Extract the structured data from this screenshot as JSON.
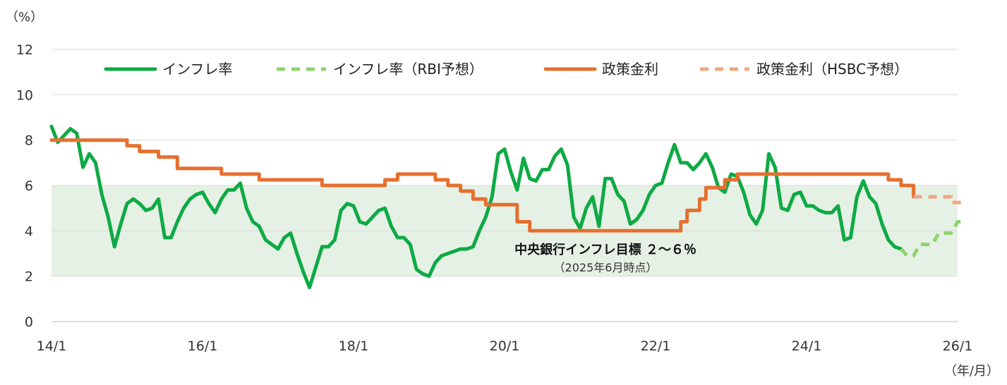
{
  "chart_data": {
    "type": "line",
    "y_unit_label": "（%）",
    "x_unit_label": "（年/月）",
    "ylim": [
      0,
      12
    ],
    "y_ticks": [
      0,
      2,
      4,
      6,
      8,
      10,
      12
    ],
    "x_range": [
      "2014-01",
      "2026-01"
    ],
    "x_ticks": [
      {
        "label": "14/1",
        "date": "2014-01"
      },
      {
        "label": "16/1",
        "date": "2016-01"
      },
      {
        "label": "18/1",
        "date": "2018-01"
      },
      {
        "label": "20/1",
        "date": "2020-01"
      },
      {
        "label": "22/1",
        "date": "2022-01"
      },
      {
        "label": "24/1",
        "date": "2024-01"
      },
      {
        "label": "26/1",
        "date": "2026-01"
      }
    ],
    "grid": true,
    "legend_position": "top",
    "band": {
      "from": 2,
      "to": 6,
      "label": "中央銀行インフレ目標 ２～６％",
      "sublabel": "（2025年6月時点）",
      "color": "#e6f1e5"
    },
    "series": [
      {
        "name": "インフレ率",
        "style": "solid",
        "color": "#0eaa45",
        "points": [
          [
            "2014-01",
            8.6
          ],
          [
            "2014-02",
            7.9
          ],
          [
            "2014-03",
            8.2
          ],
          [
            "2014-04",
            8.5
          ],
          [
            "2014-05",
            8.3
          ],
          [
            "2014-06",
            6.8
          ],
          [
            "2014-07",
            7.4
          ],
          [
            "2014-08",
            7.0
          ],
          [
            "2014-09",
            5.6
          ],
          [
            "2014-10",
            4.6
          ],
          [
            "2014-11",
            3.3
          ],
          [
            "2014-12",
            4.3
          ],
          [
            "2015-01",
            5.2
          ],
          [
            "2015-02",
            5.4
          ],
          [
            "2015-03",
            5.2
          ],
          [
            "2015-04",
            4.9
          ],
          [
            "2015-05",
            5.0
          ],
          [
            "2015-06",
            5.4
          ],
          [
            "2015-07",
            3.7
          ],
          [
            "2015-08",
            3.7
          ],
          [
            "2015-09",
            4.4
          ],
          [
            "2015-10",
            5.0
          ],
          [
            "2015-11",
            5.4
          ],
          [
            "2015-12",
            5.6
          ],
          [
            "2016-01",
            5.7
          ],
          [
            "2016-02",
            5.2
          ],
          [
            "2016-03",
            4.8
          ],
          [
            "2016-04",
            5.4
          ],
          [
            "2016-05",
            5.8
          ],
          [
            "2016-06",
            5.8
          ],
          [
            "2016-07",
            6.1
          ],
          [
            "2016-08",
            5.0
          ],
          [
            "2016-09",
            4.4
          ],
          [
            "2016-10",
            4.2
          ],
          [
            "2016-11",
            3.6
          ],
          [
            "2016-12",
            3.4
          ],
          [
            "2017-01",
            3.2
          ],
          [
            "2017-02",
            3.7
          ],
          [
            "2017-03",
            3.9
          ],
          [
            "2017-04",
            3.0
          ],
          [
            "2017-05",
            2.2
          ],
          [
            "2017-06",
            1.5
          ],
          [
            "2017-07",
            2.4
          ],
          [
            "2017-08",
            3.3
          ],
          [
            "2017-09",
            3.3
          ],
          [
            "2017-10",
            3.6
          ],
          [
            "2017-11",
            4.9
          ],
          [
            "2017-12",
            5.2
          ],
          [
            "2018-01",
            5.1
          ],
          [
            "2018-02",
            4.4
          ],
          [
            "2018-03",
            4.3
          ],
          [
            "2018-04",
            4.6
          ],
          [
            "2018-05",
            4.9
          ],
          [
            "2018-06",
            5.0
          ],
          [
            "2018-07",
            4.2
          ],
          [
            "2018-08",
            3.7
          ],
          [
            "2018-09",
            3.7
          ],
          [
            "2018-10",
            3.4
          ],
          [
            "2018-11",
            2.3
          ],
          [
            "2018-12",
            2.1
          ],
          [
            "2019-01",
            2.0
          ],
          [
            "2019-02",
            2.6
          ],
          [
            "2019-03",
            2.9
          ],
          [
            "2019-04",
            3.0
          ],
          [
            "2019-05",
            3.1
          ],
          [
            "2019-06",
            3.2
          ],
          [
            "2019-07",
            3.2
          ],
          [
            "2019-08",
            3.3
          ],
          [
            "2019-09",
            4.0
          ],
          [
            "2019-10",
            4.6
          ],
          [
            "2019-11",
            5.5
          ],
          [
            "2019-12",
            7.4
          ],
          [
            "2020-01",
            7.6
          ],
          [
            "2020-02",
            6.6
          ],
          [
            "2020-03",
            5.8
          ],
          [
            "2020-04",
            7.2
          ],
          [
            "2020-05",
            6.3
          ],
          [
            "2020-06",
            6.2
          ],
          [
            "2020-07",
            6.7
          ],
          [
            "2020-08",
            6.7
          ],
          [
            "2020-09",
            7.3
          ],
          [
            "2020-10",
            7.6
          ],
          [
            "2020-11",
            6.9
          ],
          [
            "2020-12",
            4.6
          ],
          [
            "2021-01",
            4.1
          ],
          [
            "2021-02",
            5.0
          ],
          [
            "2021-03",
            5.5
          ],
          [
            "2021-04",
            4.2
          ],
          [
            "2021-05",
            6.3
          ],
          [
            "2021-06",
            6.3
          ],
          [
            "2021-07",
            5.6
          ],
          [
            "2021-08",
            5.3
          ],
          [
            "2021-09",
            4.3
          ],
          [
            "2021-10",
            4.5
          ],
          [
            "2021-11",
            4.9
          ],
          [
            "2021-12",
            5.6
          ],
          [
            "2022-01",
            6.0
          ],
          [
            "2022-02",
            6.1
          ],
          [
            "2022-03",
            7.0
          ],
          [
            "2022-04",
            7.8
          ],
          [
            "2022-05",
            7.0
          ],
          [
            "2022-06",
            7.0
          ],
          [
            "2022-07",
            6.7
          ],
          [
            "2022-08",
            7.0
          ],
          [
            "2022-09",
            7.4
          ],
          [
            "2022-10",
            6.8
          ],
          [
            "2022-11",
            5.9
          ],
          [
            "2022-12",
            5.7
          ],
          [
            "2023-01",
            6.5
          ],
          [
            "2023-02",
            6.4
          ],
          [
            "2023-03",
            5.7
          ],
          [
            "2023-04",
            4.7
          ],
          [
            "2023-05",
            4.3
          ],
          [
            "2023-06",
            4.9
          ],
          [
            "2023-07",
            7.4
          ],
          [
            "2023-08",
            6.8
          ],
          [
            "2023-09",
            5.0
          ],
          [
            "2023-10",
            4.9
          ],
          [
            "2023-11",
            5.6
          ],
          [
            "2023-12",
            5.7
          ],
          [
            "2024-01",
            5.1
          ],
          [
            "2024-02",
            5.1
          ],
          [
            "2024-03",
            4.9
          ],
          [
            "2024-04",
            4.8
          ],
          [
            "2024-05",
            4.8
          ],
          [
            "2024-06",
            5.1
          ],
          [
            "2024-07",
            3.6
          ],
          [
            "2024-08",
            3.7
          ],
          [
            "2024-09",
            5.5
          ],
          [
            "2024-10",
            6.2
          ],
          [
            "2024-11",
            5.5
          ],
          [
            "2024-12",
            5.2
          ],
          [
            "2025-01",
            4.3
          ],
          [
            "2025-02",
            3.6
          ],
          [
            "2025-03",
            3.3
          ],
          [
            "2025-04",
            3.2
          ]
        ]
      },
      {
        "name": "インフレ率（RBI予想）",
        "style": "dashed",
        "color": "#8fd36e",
        "points": [
          [
            "2025-04",
            3.2
          ],
          [
            "2025-05",
            2.9
          ],
          [
            "2025-06",
            2.9
          ],
          [
            "2025-07",
            3.4
          ],
          [
            "2025-08",
            3.4
          ],
          [
            "2025-09",
            3.4
          ],
          [
            "2025-10",
            3.9
          ],
          [
            "2025-11",
            3.9
          ],
          [
            "2025-12",
            3.9
          ],
          [
            "2026-01",
            4.4
          ],
          [
            "2026-02",
            4.4
          ]
        ]
      },
      {
        "name": "政策金利",
        "style": "solid",
        "color": "#e66f2e",
        "points": [
          [
            "2014-01",
            8.0
          ],
          [
            "2015-01",
            8.0
          ],
          [
            "2015-01",
            7.75
          ],
          [
            "2015-03",
            7.75
          ],
          [
            "2015-03",
            7.5
          ],
          [
            "2015-06",
            7.5
          ],
          [
            "2015-06",
            7.25
          ],
          [
            "2015-09",
            7.25
          ],
          [
            "2015-09",
            6.75
          ],
          [
            "2016-04",
            6.75
          ],
          [
            "2016-04",
            6.5
          ],
          [
            "2016-10",
            6.5
          ],
          [
            "2016-10",
            6.25
          ],
          [
            "2017-08",
            6.25
          ],
          [
            "2017-08",
            6.0
          ],
          [
            "2018-06",
            6.0
          ],
          [
            "2018-06",
            6.25
          ],
          [
            "2018-08",
            6.25
          ],
          [
            "2018-08",
            6.5
          ],
          [
            "2019-02",
            6.5
          ],
          [
            "2019-02",
            6.25
          ],
          [
            "2019-04",
            6.25
          ],
          [
            "2019-04",
            6.0
          ],
          [
            "2019-06",
            6.0
          ],
          [
            "2019-06",
            5.75
          ],
          [
            "2019-08",
            5.75
          ],
          [
            "2019-08",
            5.4
          ],
          [
            "2019-10",
            5.4
          ],
          [
            "2019-10",
            5.15
          ],
          [
            "2020-03",
            5.15
          ],
          [
            "2020-03",
            4.4
          ],
          [
            "2020-05",
            4.4
          ],
          [
            "2020-05",
            4.0
          ],
          [
            "2022-05",
            4.0
          ],
          [
            "2022-05",
            4.4
          ],
          [
            "2022-06",
            4.4
          ],
          [
            "2022-06",
            4.9
          ],
          [
            "2022-08",
            4.9
          ],
          [
            "2022-08",
            5.4
          ],
          [
            "2022-09",
            5.4
          ],
          [
            "2022-09",
            5.9
          ],
          [
            "2022-12",
            5.9
          ],
          [
            "2022-12",
            6.25
          ],
          [
            "2023-02",
            6.25
          ],
          [
            "2023-02",
            6.5
          ],
          [
            "2025-02",
            6.5
          ],
          [
            "2025-02",
            6.25
          ],
          [
            "2025-04",
            6.25
          ],
          [
            "2025-04",
            6.0
          ],
          [
            "2025-06",
            6.0
          ],
          [
            "2025-06",
            5.5
          ]
        ]
      },
      {
        "name": "政策金利（HSBC予想）",
        "style": "dashed",
        "color": "#eda884",
        "points": [
          [
            "2025-06",
            5.5
          ],
          [
            "2025-12",
            5.5
          ],
          [
            "2025-12",
            5.25
          ],
          [
            "2026-02",
            5.25
          ]
        ]
      }
    ]
  }
}
